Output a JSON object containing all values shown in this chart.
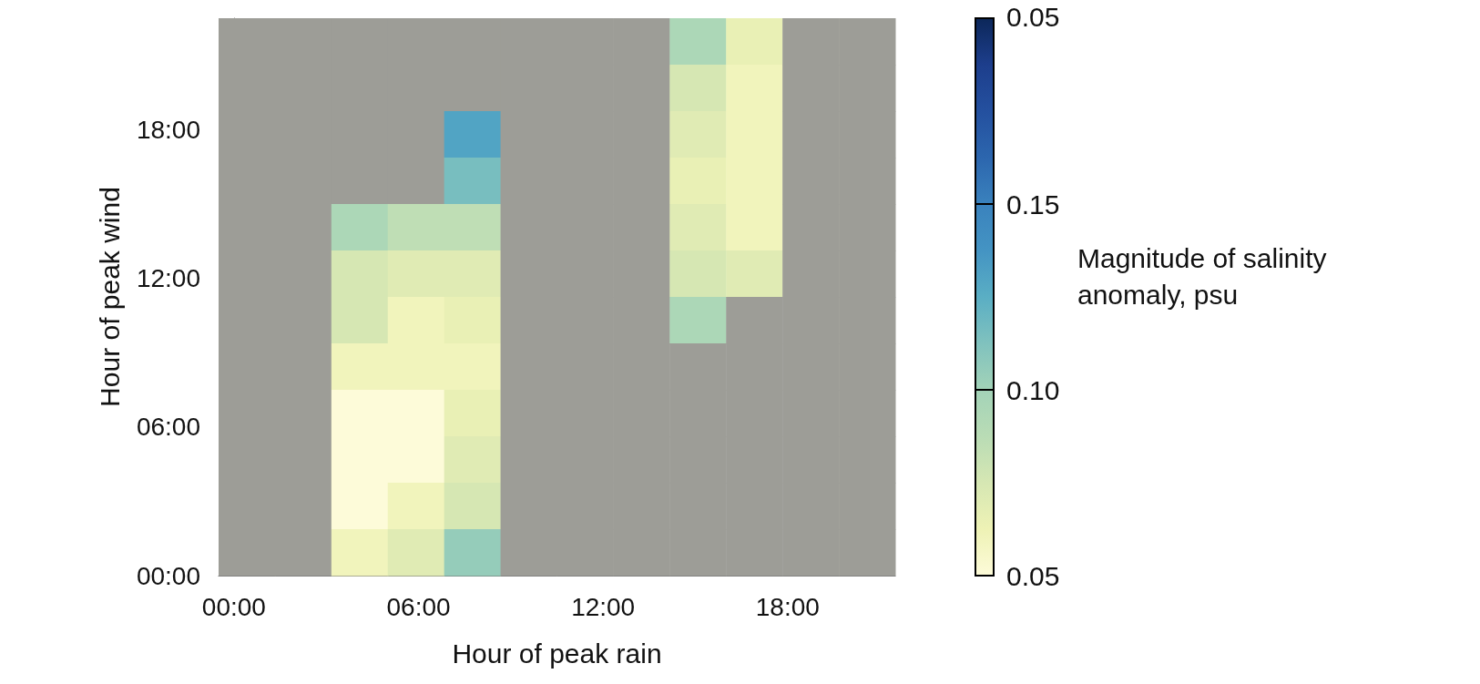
{
  "chart_data": {
    "type": "heatmap",
    "xlabel": "Hour of peak rain",
    "ylabel": "Hour of peak wind",
    "clabel": "Magnitude of salinity anomaly, psu",
    "xlim": [
      -0.5,
      21.5
    ],
    "xticks": [
      {
        "value": 0,
        "label": "00:00"
      },
      {
        "value": 6,
        "label": "06:00"
      },
      {
        "value": 12,
        "label": "12:00"
      },
      {
        "value": 18,
        "label": "18:00"
      }
    ],
    "ylim": [
      0,
      22.5
    ],
    "yticks": [
      {
        "value": 0,
        "label": "00:00"
      },
      {
        "value": 6,
        "label": "06:00"
      },
      {
        "value": 12,
        "label": "12:00"
      },
      {
        "value": 18,
        "label": "18:00"
      }
    ],
    "clim": [
      0.05,
      0.2
    ],
    "cticks": [
      0.05,
      {
        "value": 0.1,
        "label": "0.10"
      },
      0.15
    ],
    "annotations": [
      "0.05"
    ],
    "cells": [
      [
        null,
        null,
        null,
        null,
        null,
        null,
        null,
        null,
        0.095,
        0.065,
        null,
        null
      ],
      [
        null,
        null,
        null,
        null,
        null,
        null,
        null,
        null,
        0.075,
        0.06,
        null,
        null
      ],
      [
        null,
        null,
        null,
        null,
        0.13,
        null,
        null,
        null,
        0.07,
        0.06,
        null,
        null
      ],
      [
        null,
        null,
        null,
        null,
        0.115,
        null,
        null,
        null,
        0.065,
        0.06,
        null,
        null
      ],
      [
        null,
        null,
        0.095,
        0.085,
        0.085,
        null,
        null,
        null,
        0.07,
        0.06,
        null,
        null
      ],
      [
        null,
        null,
        0.075,
        0.07,
        0.07,
        null,
        null,
        null,
        0.075,
        0.07,
        null,
        null
      ],
      [
        null,
        null,
        0.075,
        0.06,
        0.065,
        null,
        null,
        null,
        0.095,
        null,
        null,
        null
      ],
      [
        null,
        null,
        0.06,
        0.06,
        0.06,
        null,
        null,
        null,
        null,
        null,
        null,
        null
      ],
      [
        null,
        null,
        0.05,
        0.05,
        0.065,
        null,
        null,
        null,
        null,
        null,
        null,
        null
      ],
      [
        null,
        null,
        0.05,
        0.05,
        0.07,
        null,
        null,
        null,
        null,
        null,
        null,
        null
      ],
      [
        null,
        null,
        0.05,
        0.06,
        0.075,
        null,
        null,
        null,
        null,
        null,
        null,
        null
      ],
      [
        null,
        null,
        0.06,
        0.07,
        0.105,
        null,
        null,
        null,
        null,
        null,
        null,
        null
      ]
    ]
  }
}
